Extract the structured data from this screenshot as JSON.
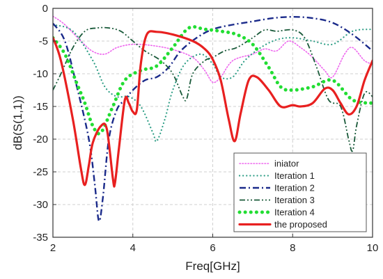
{
  "chart_data": {
    "type": "line",
    "xlabel": "Freq[GHz]",
    "ylabel": "dB(S(1,1))",
    "xlim": [
      2,
      10
    ],
    "ylim": [
      -35,
      0
    ],
    "x_ticks": [
      2,
      4,
      6,
      8,
      10
    ],
    "y_ticks": [
      0,
      -5,
      -10,
      -15,
      -20,
      -25,
      -30,
      -35
    ],
    "x_tick_labels": [
      "2",
      "4",
      "6",
      "8",
      "10"
    ],
    "y_tick_labels": [
      "0",
      "-5",
      "-10",
      "-15",
      "-20",
      "-25",
      "-30",
      "-35"
    ],
    "grid": true,
    "legend_position": "bottom-right",
    "series": [
      {
        "name": "iniator",
        "color": "#ee66ee",
        "dash": "dot",
        "points": [
          [
            2.0,
            -1.2
          ],
          [
            2.3,
            -2.5
          ],
          [
            2.7,
            -5.0
          ],
          [
            3.0,
            -6.6
          ],
          [
            3.3,
            -7.0
          ],
          [
            3.6,
            -6.0
          ],
          [
            4.0,
            -5.5
          ],
          [
            4.5,
            -5.7
          ],
          [
            5.0,
            -6.3
          ],
          [
            5.5,
            -7.5
          ],
          [
            5.8,
            -9.5
          ],
          [
            6.0,
            -11.3
          ],
          [
            6.2,
            -10.5
          ],
          [
            6.5,
            -8.0
          ],
          [
            7.0,
            -7.0
          ],
          [
            7.3,
            -6.2
          ],
          [
            7.6,
            -6.5
          ],
          [
            7.9,
            -5.0
          ],
          [
            8.2,
            -6.0
          ],
          [
            8.5,
            -7.5
          ],
          [
            8.8,
            -9.5
          ],
          [
            9.0,
            -10.5
          ],
          [
            9.3,
            -7.0
          ],
          [
            9.5,
            -6.0
          ],
          [
            9.8,
            -8.0
          ],
          [
            10.0,
            -8.5
          ]
        ]
      },
      {
        "name": "Iteration 1",
        "color": "#2e9e86",
        "dash": "dot-sparse",
        "points": [
          [
            2.0,
            -2.5
          ],
          [
            2.5,
            -3.5
          ],
          [
            3.0,
            -8.0
          ],
          [
            3.3,
            -12.0
          ],
          [
            3.6,
            -13.5
          ],
          [
            3.9,
            -13.5
          ],
          [
            4.2,
            -15.0
          ],
          [
            4.5,
            -19.0
          ],
          [
            4.6,
            -20.3
          ],
          [
            4.8,
            -17.0
          ],
          [
            5.0,
            -12.5
          ],
          [
            5.3,
            -8.5
          ],
          [
            5.7,
            -7.0
          ],
          [
            6.0,
            -8.5
          ],
          [
            6.2,
            -10.5
          ],
          [
            6.5,
            -10.5
          ],
          [
            6.8,
            -8.0
          ],
          [
            7.2,
            -6.0
          ],
          [
            7.6,
            -4.8
          ],
          [
            8.0,
            -4.5
          ],
          [
            8.5,
            -5.0
          ],
          [
            9.0,
            -5.5
          ],
          [
            9.5,
            -3.5
          ],
          [
            10.0,
            -3.2
          ]
        ]
      },
      {
        "name": "Iteration 2",
        "color": "#1a2a8a",
        "dash": "dashdot",
        "points": [
          [
            2.0,
            -2.3
          ],
          [
            2.3,
            -5.0
          ],
          [
            2.6,
            -12.0
          ],
          [
            2.9,
            -20.0
          ],
          [
            3.05,
            -27.0
          ],
          [
            3.15,
            -32.5
          ],
          [
            3.25,
            -29.0
          ],
          [
            3.4,
            -20.0
          ],
          [
            3.6,
            -15.5
          ],
          [
            3.8,
            -14.0
          ],
          [
            4.0,
            -12.5
          ],
          [
            4.3,
            -11.0
          ],
          [
            4.6,
            -10.5
          ],
          [
            4.9,
            -9.0
          ],
          [
            5.2,
            -6.5
          ],
          [
            5.6,
            -4.5
          ],
          [
            6.0,
            -3.2
          ],
          [
            6.5,
            -2.5
          ],
          [
            7.0,
            -2.0
          ],
          [
            7.5,
            -1.5
          ],
          [
            8.0,
            -1.3
          ],
          [
            8.5,
            -1.5
          ],
          [
            9.0,
            -2.2
          ],
          [
            9.5,
            -4.0
          ],
          [
            10.0,
            -6.5
          ]
        ]
      },
      {
        "name": "Iteration 3",
        "color": "#1a5a3a",
        "dash": "dashdotdot",
        "points": [
          [
            2.0,
            -12.5
          ],
          [
            2.2,
            -10.0
          ],
          [
            2.5,
            -6.0
          ],
          [
            2.8,
            -3.5
          ],
          [
            3.1,
            -3.0
          ],
          [
            3.4,
            -3.0
          ],
          [
            3.7,
            -3.5
          ],
          [
            4.0,
            -5.0
          ],
          [
            4.3,
            -6.5
          ],
          [
            4.7,
            -8.0
          ],
          [
            5.0,
            -10.0
          ],
          [
            5.25,
            -13.5
          ],
          [
            5.35,
            -13.8
          ],
          [
            5.5,
            -10.0
          ],
          [
            5.8,
            -8.0
          ],
          [
            6.0,
            -7.5
          ],
          [
            6.3,
            -6.5
          ],
          [
            6.6,
            -6.0
          ],
          [
            7.0,
            -4.5
          ],
          [
            7.3,
            -3.3
          ],
          [
            7.6,
            -3.5
          ],
          [
            8.0,
            -3.3
          ],
          [
            8.3,
            -4.5
          ],
          [
            8.6,
            -9.0
          ],
          [
            8.9,
            -14.0
          ],
          [
            9.2,
            -15.0
          ],
          [
            9.4,
            -20.0
          ],
          [
            9.5,
            -21.8
          ],
          [
            9.6,
            -18.0
          ],
          [
            9.8,
            -13.0
          ],
          [
            10.0,
            -13.5
          ]
        ]
      },
      {
        "name": "Iteration 4",
        "color": "#22dd33",
        "dash": "dot-thick",
        "points": [
          [
            2.0,
            -4.5
          ],
          [
            2.3,
            -7.0
          ],
          [
            2.6,
            -11.5
          ],
          [
            2.8,
            -14.5
          ],
          [
            3.0,
            -18.0
          ],
          [
            3.2,
            -19.0
          ],
          [
            3.5,
            -15.0
          ],
          [
            3.8,
            -11.0
          ],
          [
            4.2,
            -9.5
          ],
          [
            4.6,
            -8.8
          ],
          [
            5.0,
            -6.0
          ],
          [
            5.4,
            -3.0
          ],
          [
            5.8,
            -3.2
          ],
          [
            6.2,
            -3.5
          ],
          [
            6.6,
            -4.0
          ],
          [
            7.0,
            -5.5
          ],
          [
            7.4,
            -9.0
          ],
          [
            7.7,
            -12.0
          ],
          [
            8.0,
            -12.5
          ],
          [
            8.5,
            -12.0
          ],
          [
            9.0,
            -11.0
          ],
          [
            9.5,
            -14.0
          ],
          [
            10.0,
            -14.5
          ]
        ]
      },
      {
        "name": "the proposed",
        "color": "#e82020",
        "dash": "solid",
        "points": [
          [
            2.0,
            -4.5
          ],
          [
            2.2,
            -8.0
          ],
          [
            2.5,
            -17.0
          ],
          [
            2.7,
            -24.5
          ],
          [
            2.8,
            -27.0
          ],
          [
            2.9,
            -24.0
          ],
          [
            3.0,
            -20.5
          ],
          [
            3.2,
            -18.0
          ],
          [
            3.35,
            -18.5
          ],
          [
            3.5,
            -26.0
          ],
          [
            3.55,
            -26.8
          ],
          [
            3.65,
            -21.5
          ],
          [
            3.8,
            -14.0
          ],
          [
            3.9,
            -14.5
          ],
          [
            4.0,
            -15.8
          ],
          [
            4.1,
            -15.5
          ],
          [
            4.2,
            -8.5
          ],
          [
            4.35,
            -4.0
          ],
          [
            4.6,
            -3.6
          ],
          [
            5.0,
            -4.0
          ],
          [
            5.5,
            -5.0
          ],
          [
            5.8,
            -6.2
          ],
          [
            6.0,
            -7.8
          ],
          [
            6.2,
            -11.0
          ],
          [
            6.4,
            -17.0
          ],
          [
            6.55,
            -20.3
          ],
          [
            6.7,
            -16.0
          ],
          [
            6.9,
            -11.0
          ],
          [
            7.1,
            -10.5
          ],
          [
            7.4,
            -12.5
          ],
          [
            7.7,
            -15.0
          ],
          [
            8.0,
            -14.8
          ],
          [
            8.2,
            -15.0
          ],
          [
            8.5,
            -14.5
          ],
          [
            8.8,
            -12.3
          ],
          [
            9.0,
            -12.5
          ],
          [
            9.2,
            -14.5
          ],
          [
            9.4,
            -16.2
          ],
          [
            9.6,
            -15.0
          ],
          [
            9.8,
            -11.0
          ],
          [
            10.0,
            -8.0
          ]
        ]
      }
    ]
  }
}
